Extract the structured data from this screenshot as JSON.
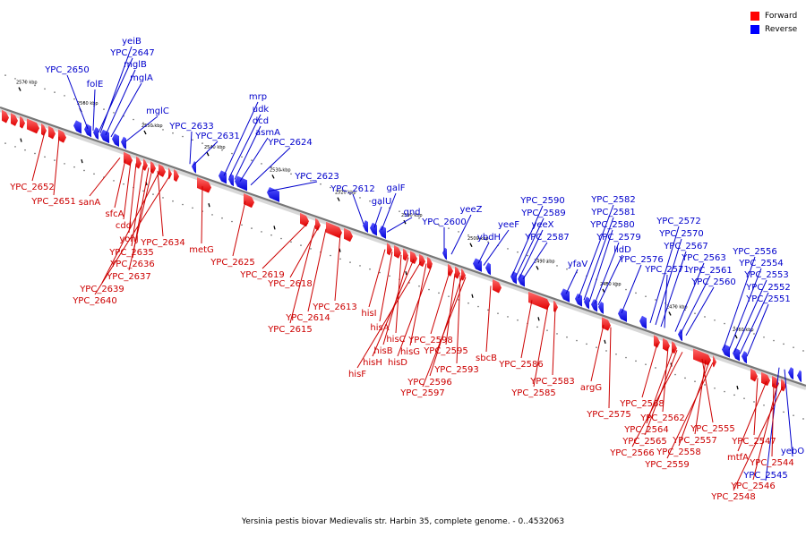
{
  "caption": "Yersinia pestis biovar Medievalis str. Harbin 35, complete genome. - 0..4532063",
  "legend": [
    {
      "label": "Forward",
      "color": "#ff0000"
    },
    {
      "label": "Reverse",
      "color": "#0000ff"
    }
  ],
  "colors": {
    "forward": "#ff0000",
    "reverse": "#0000ff",
    "forward_text": "#cc0000",
    "reverse_text": "#0000cc"
  },
  "ticks": [
    "2570 kbp",
    "2560 kbp",
    "2550 kbp",
    "2540 kbp",
    "2530 kbp",
    "2520 kbp",
    "2510 kbp",
    "2500 kbp",
    "2490 kbp",
    "2480 kbp",
    "2470 kbp",
    "2460 kbp"
  ],
  "reverse_labels": [
    "yeiB",
    "YPC_2647",
    "mglB",
    "YPC_2650",
    "mglA",
    "folE",
    "mglC",
    "YPC_2633",
    "YPC_2631",
    "mrp",
    "udk",
    "dcd",
    "asmA",
    "YPC_2624",
    "YPC_2623",
    "YPC_2612",
    "galF",
    "galU",
    "gnd",
    "yeeZ",
    "YPC_2600",
    "yeeF",
    "ybdH",
    "YPC_2590",
    "YPC_2589",
    "yeeX",
    "YPC_2587",
    "YPC_2582",
    "YPC_2581",
    "YPC_2580",
    "YPC_2579",
    "lldD",
    "yfaV",
    "YPC_2576",
    "YPC_2572",
    "YPC_2570",
    "YPC_2567",
    "YPC_2571",
    "YPC_2563",
    "YPC_2561",
    "YPC_2560",
    "YPC_2556",
    "YPC_2554",
    "YPC_2553",
    "YPC_2552",
    "YPC_2551",
    "yebO",
    "YPC_2545"
  ],
  "forward_labels": [
    "YPC_2652",
    "YPC_2651",
    "sanA",
    "sfcA",
    "cdd",
    "yohJ",
    "YPC_2634",
    "YPC_2635",
    "YPC_2636",
    "YPC_2637",
    "YPC_2639",
    "YPC_2640",
    "metG",
    "YPC_2625",
    "YPC_2619",
    "YPC_2618",
    "YPC_2613",
    "YPC_2614",
    "YPC_2615",
    "hisI",
    "hisA",
    "hisC",
    "hisB",
    "hisH",
    "hisF",
    "hisG",
    "hisD",
    "YPC_2598",
    "YPC_2595",
    "YPC_2593",
    "YPC_2596",
    "YPC_2597",
    "sbcB",
    "YPC_2586",
    "YPC_2583",
    "YPC_2585",
    "argG",
    "YPC_2575",
    "YPC_2568",
    "YPC_2562",
    "YPC_2564",
    "YPC_2565",
    "YPC_2566",
    "YPC_2555",
    "YPC_2557",
    "YPC_2558",
    "YPC_2559",
    "YPC_2547",
    "mtfA",
    "YPC_2544",
    "YPC_2546",
    "YPC_2548"
  ]
}
